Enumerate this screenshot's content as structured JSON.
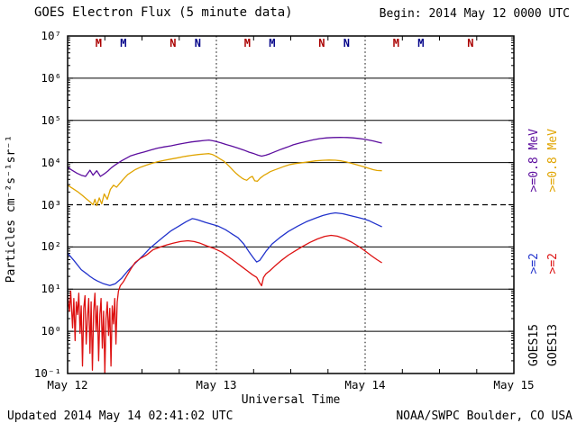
{
  "header": {
    "title": "GOES Electron Flux (5 minute data)",
    "begin": "Begin: 2014 May 12 0000 UTC"
  },
  "footer": {
    "updated": "Updated 2014 May 14 02:41:02 UTC",
    "credit": "NOAA/SWPC Boulder, CO USA"
  },
  "axes": {
    "ylabel": "Particles cm⁻²s⁻¹sr⁻¹",
    "xlabel": "Universal Time",
    "y_ticks": [
      {
        "label": "10⁷",
        "exp": 7
      },
      {
        "label": "10⁶",
        "exp": 6
      },
      {
        "label": "10⁵",
        "exp": 5
      },
      {
        "label": "10⁴",
        "exp": 4
      },
      {
        "label": "10³",
        "exp": 3
      },
      {
        "label": "10²",
        "exp": 2
      },
      {
        "label": "10¹",
        "exp": 1
      },
      {
        "label": "10⁰",
        "exp": 0
      },
      {
        "label": "10⁻¹",
        "exp": -1
      }
    ],
    "x_ticks": [
      {
        "label": "May 12",
        "hour": 0
      },
      {
        "label": "May 13",
        "hour": 24
      },
      {
        "label": "May 14",
        "hour": 48
      },
      {
        "label": "May 15",
        "hour": 72
      }
    ]
  },
  "legend": {
    "columns": [
      {
        "satellite": "GOES15",
        "entries": [
          {
            "label": ">=0.8 MeV",
            "color": "#5c0d9e"
          },
          {
            "label": ">=2",
            "color": "#2233cc"
          }
        ]
      },
      {
        "satellite": "GOES13",
        "entries": [
          {
            "label": ">=0.8 MeV",
            "color": "#e0a400"
          },
          {
            "label": ">=2",
            "color": "#dd1111"
          }
        ]
      }
    ]
  },
  "markers": [
    {
      "hour": 5,
      "letter": "M",
      "color": "#aa0000"
    },
    {
      "hour": 9,
      "letter": "M",
      "color": "#000088"
    },
    {
      "hour": 17,
      "letter": "N",
      "color": "#aa0000"
    },
    {
      "hour": 21,
      "letter": "N",
      "color": "#000088"
    },
    {
      "hour": 29,
      "letter": "M",
      "color": "#aa0000"
    },
    {
      "hour": 33,
      "letter": "M",
      "color": "#000088"
    },
    {
      "hour": 41,
      "letter": "N",
      "color": "#aa0000"
    },
    {
      "hour": 45,
      "letter": "N",
      "color": "#000088"
    },
    {
      "hour": 53,
      "letter": "M",
      "color": "#aa0000"
    },
    {
      "hour": 57,
      "letter": "M",
      "color": "#000088"
    },
    {
      "hour": 65,
      "letter": "N",
      "color": "#aa0000"
    }
  ],
  "chart_data": {
    "type": "line",
    "title": "GOES Electron Flux (5 minute data)",
    "xlabel": "Universal Time",
    "ylabel": "Particles cm⁻²s⁻¹sr⁻¹",
    "x_unit": "hours since 2014 May 12 0000 UTC",
    "xlim": [
      0,
      72
    ],
    "ylim_log10": [
      -1,
      7
    ],
    "yscale": "log",
    "grid": "horizontal solid line at each decade",
    "x_day_lines": [
      24,
      48
    ],
    "threshold_dashed_log10": 3,
    "legend_position": "right",
    "series": [
      {
        "name": "GOES15 >=0.8 MeV",
        "color": "#5c0d9e",
        "points": [
          [
            0,
            7800
          ],
          [
            0.7,
            6600
          ],
          [
            1.5,
            5600
          ],
          [
            2.2,
            5000
          ],
          [
            2.9,
            4700
          ],
          [
            3.6,
            6600
          ],
          [
            4.1,
            5000
          ],
          [
            4.7,
            6400
          ],
          [
            5.3,
            4700
          ],
          [
            5.9,
            5400
          ],
          [
            6.5,
            6300
          ],
          [
            7.1,
            7600
          ],
          [
            7.7,
            8800
          ],
          [
            8.7,
            11000
          ],
          [
            10.2,
            14500
          ],
          [
            11.3,
            16300
          ],
          [
            12.4,
            18000
          ],
          [
            13.5,
            20000
          ],
          [
            14.5,
            22000
          ],
          [
            15.6,
            23500
          ],
          [
            16.7,
            25000
          ],
          [
            17.8,
            27000
          ],
          [
            18.9,
            29000
          ],
          [
            20.0,
            30800
          ],
          [
            21.1,
            32200
          ],
          [
            22.0,
            33400
          ],
          [
            22.8,
            34200
          ],
          [
            23.6,
            32500
          ],
          [
            24.7,
            29500
          ],
          [
            25.6,
            26800
          ],
          [
            26.6,
            24200
          ],
          [
            27.5,
            22000
          ],
          [
            28.4,
            19800
          ],
          [
            29.3,
            17600
          ],
          [
            30.1,
            16200
          ],
          [
            30.7,
            15000
          ],
          [
            31.3,
            14200
          ],
          [
            32.0,
            15000
          ],
          [
            32.7,
            16300
          ],
          [
            33.6,
            18400
          ],
          [
            34.5,
            20800
          ],
          [
            35.5,
            23400
          ],
          [
            36.4,
            26400
          ],
          [
            37.4,
            29000
          ],
          [
            38.5,
            31800
          ],
          [
            39.6,
            34500
          ],
          [
            40.7,
            37000
          ],
          [
            41.8,
            38400
          ],
          [
            42.9,
            39300
          ],
          [
            44.0,
            39500
          ],
          [
            45.1,
            39200
          ],
          [
            46.0,
            38400
          ],
          [
            46.9,
            37300
          ],
          [
            47.8,
            35900
          ],
          [
            48.6,
            34200
          ],
          [
            49.4,
            32200
          ],
          [
            50.1,
            30400
          ],
          [
            50.7,
            29000
          ]
        ]
      },
      {
        "name": "GOES13 >=0.8 MeV",
        "color": "#e0a400",
        "points": [
          [
            0,
            2900
          ],
          [
            0.8,
            2450
          ],
          [
            1.6,
            2050
          ],
          [
            2.4,
            1650
          ],
          [
            3.1,
            1350
          ],
          [
            3.7,
            1150
          ],
          [
            4.1,
            1000
          ],
          [
            4.4,
            1350
          ],
          [
            4.7,
            950
          ],
          [
            5.1,
            1450
          ],
          [
            5.5,
            1050
          ],
          [
            5.9,
            1800
          ],
          [
            6.4,
            1350
          ],
          [
            6.9,
            2300
          ],
          [
            7.4,
            2900
          ],
          [
            7.9,
            2600
          ],
          [
            8.4,
            3200
          ],
          [
            8.9,
            3900
          ],
          [
            9.7,
            5200
          ],
          [
            10.9,
            6800
          ],
          [
            11.8,
            7800
          ],
          [
            12.7,
            8700
          ],
          [
            13.6,
            9600
          ],
          [
            14.5,
            10400
          ],
          [
            15.6,
            11300
          ],
          [
            16.7,
            12100
          ],
          [
            17.8,
            13000
          ],
          [
            18.9,
            14000
          ],
          [
            20.0,
            14800
          ],
          [
            21.1,
            15500
          ],
          [
            22.0,
            16000
          ],
          [
            22.8,
            16300
          ],
          [
            23.4,
            15400
          ],
          [
            24.0,
            14000
          ],
          [
            24.6,
            12200
          ],
          [
            25.2,
            10800
          ],
          [
            25.7,
            9200
          ],
          [
            26.2,
            7800
          ],
          [
            26.7,
            6500
          ],
          [
            27.2,
            5500
          ],
          [
            27.7,
            4800
          ],
          [
            28.1,
            4300
          ],
          [
            28.5,
            4000
          ],
          [
            28.9,
            3800
          ],
          [
            29.4,
            4400
          ],
          [
            29.8,
            4700
          ],
          [
            30.2,
            3700
          ],
          [
            30.6,
            3600
          ],
          [
            31.1,
            4300
          ],
          [
            31.6,
            4900
          ],
          [
            32.1,
            5400
          ],
          [
            32.7,
            6100
          ],
          [
            33.4,
            6700
          ],
          [
            34.2,
            7400
          ],
          [
            35.0,
            8200
          ],
          [
            35.9,
            9000
          ],
          [
            36.8,
            9500
          ],
          [
            37.8,
            9900
          ],
          [
            38.9,
            10400
          ],
          [
            40.0,
            11000
          ],
          [
            41.1,
            11300
          ],
          [
            42.2,
            11500
          ],
          [
            43.2,
            11400
          ],
          [
            44.1,
            11000
          ],
          [
            45.0,
            10300
          ],
          [
            45.8,
            9600
          ],
          [
            46.6,
            8900
          ],
          [
            47.3,
            8300
          ],
          [
            48.0,
            7800
          ],
          [
            48.7,
            7200
          ],
          [
            49.3,
            6800
          ],
          [
            49.9,
            6500
          ],
          [
            50.7,
            6400
          ]
        ]
      },
      {
        "name": "GOES15 >=2 MeV",
        "color": "#2233cc",
        "points": [
          [
            0,
            71
          ],
          [
            1.0,
            48
          ],
          [
            2.2,
            29
          ],
          [
            3.1,
            23
          ],
          [
            3.6,
            20
          ],
          [
            4.2,
            17.5
          ],
          [
            4.8,
            15.6
          ],
          [
            5.8,
            13.4
          ],
          [
            6.8,
            12.2
          ],
          [
            7.7,
            13.4
          ],
          [
            8.7,
            18
          ],
          [
            9.7,
            27
          ],
          [
            10.9,
            41
          ],
          [
            12.1,
            61
          ],
          [
            13.2,
            91
          ],
          [
            14.4,
            128
          ],
          [
            15.6,
            180
          ],
          [
            16.7,
            242
          ],
          [
            17.9,
            309
          ],
          [
            19.1,
            396
          ],
          [
            20.1,
            470
          ],
          [
            20.6,
            455
          ],
          [
            21.1,
            434
          ],
          [
            22.3,
            378
          ],
          [
            23.3,
            342
          ],
          [
            24.3,
            310
          ],
          [
            25.5,
            255
          ],
          [
            26.6,
            200
          ],
          [
            27.5,
            165
          ],
          [
            28.4,
            118
          ],
          [
            29.2,
            79
          ],
          [
            30.0,
            54
          ],
          [
            30.5,
            44
          ],
          [
            31.0,
            48
          ],
          [
            31.3,
            56
          ],
          [
            32.0,
            79
          ],
          [
            33.0,
            118
          ],
          [
            34.2,
            165
          ],
          [
            35.6,
            232
          ],
          [
            37.1,
            310
          ],
          [
            38.5,
            396
          ],
          [
            40.0,
            480
          ],
          [
            41.2,
            556
          ],
          [
            42.3,
            612
          ],
          [
            43.2,
            642
          ],
          [
            44.4,
            612
          ],
          [
            45.5,
            556
          ],
          [
            46.7,
            504
          ],
          [
            47.9,
            456
          ],
          [
            48.7,
            415
          ],
          [
            49.6,
            358
          ],
          [
            50.3,
            320
          ],
          [
            50.7,
            300
          ]
        ]
      },
      {
        "name": "GOES13 >=2 MeV",
        "color": "#dd1111",
        "points": [
          [
            0,
            7
          ],
          [
            0.3,
            3
          ],
          [
            0.5,
            9
          ],
          [
            0.8,
            1.2
          ],
          [
            1.0,
            6
          ],
          [
            1.2,
            0.6
          ],
          [
            1.4,
            5
          ],
          [
            1.6,
            2.5
          ],
          [
            1.8,
            8
          ],
          [
            2.0,
            0.9
          ],
          [
            2.2,
            4
          ],
          [
            2.4,
            0.15
          ],
          [
            2.6,
            3.5
          ],
          [
            2.8,
            7
          ],
          [
            3.0,
            0.5
          ],
          [
            3.2,
            2
          ],
          [
            3.4,
            6
          ],
          [
            3.6,
            0.3
          ],
          [
            3.8,
            5
          ],
          [
            4.0,
            0.12
          ],
          [
            4.2,
            3
          ],
          [
            4.4,
            8
          ],
          [
            4.6,
            1
          ],
          [
            4.8,
            4
          ],
          [
            5.0,
            0.2
          ],
          [
            5.2,
            2.5
          ],
          [
            5.4,
            6
          ],
          [
            5.6,
            0.4
          ],
          [
            5.8,
            3
          ],
          [
            6.0,
            0.1
          ],
          [
            6.2,
            2
          ],
          [
            6.4,
            5
          ],
          [
            6.6,
            0.8
          ],
          [
            6.8,
            3.5
          ],
          [
            7.0,
            0.15
          ],
          [
            7.2,
            4
          ],
          [
            7.4,
            1.5
          ],
          [
            7.6,
            6
          ],
          [
            7.8,
            0.5
          ],
          [
            8.0,
            5
          ],
          [
            8.2,
            9
          ],
          [
            8.5,
            12
          ],
          [
            9.0,
            15
          ],
          [
            9.5,
            20
          ],
          [
            10.2,
            30
          ],
          [
            10.9,
            43
          ],
          [
            11.8,
            54
          ],
          [
            12.7,
            64
          ],
          [
            13.8,
            86
          ],
          [
            15.0,
            100
          ],
          [
            16.0,
            112
          ],
          [
            17.0,
            122
          ],
          [
            18.2,
            134
          ],
          [
            19.4,
            140
          ],
          [
            20.4,
            134
          ],
          [
            21.4,
            122
          ],
          [
            22.5,
            105
          ],
          [
            23.7,
            91
          ],
          [
            24.9,
            75
          ],
          [
            26.0,
            58
          ],
          [
            27.2,
            43
          ],
          [
            28.1,
            34
          ],
          [
            29.0,
            27
          ],
          [
            29.8,
            22
          ],
          [
            30.5,
            19
          ],
          [
            31.0,
            14
          ],
          [
            31.3,
            12
          ],
          [
            31.6,
            19
          ],
          [
            32.0,
            23
          ],
          [
            32.6,
            27
          ],
          [
            33.5,
            36
          ],
          [
            34.5,
            48
          ],
          [
            35.6,
            64
          ],
          [
            36.8,
            82
          ],
          [
            38.0,
            105
          ],
          [
            39.1,
            128
          ],
          [
            40.3,
            155
          ],
          [
            41.5,
            178
          ],
          [
            42.5,
            188
          ],
          [
            43.5,
            180
          ],
          [
            44.7,
            156
          ],
          [
            45.8,
            130
          ],
          [
            47.0,
            102
          ],
          [
            48.0,
            80
          ],
          [
            49.0,
            62
          ],
          [
            49.9,
            50
          ],
          [
            50.7,
            42
          ]
        ]
      }
    ]
  }
}
